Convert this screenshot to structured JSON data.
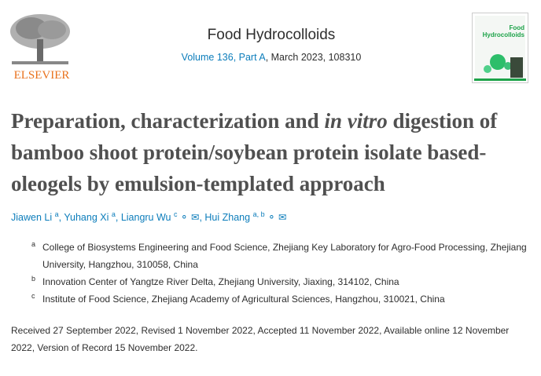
{
  "publisher": {
    "name": "ELSEVIER"
  },
  "journal": {
    "name": "Food Hydrocolloids",
    "volume_link": "Volume 136, Part A",
    "date_id": ", March 2023, 108310",
    "cover_title": "Food Hydrocolloids"
  },
  "article": {
    "title_part1": "Preparation, characterization and ",
    "title_italic": "in vitro",
    "title_part2": " digestion of bamboo shoot protein/soybean protein isolate based-oleogels by emulsion-templated approach"
  },
  "authors": [
    {
      "name": "Jiawen Li",
      "sup": "a"
    },
    {
      "name": "Yuhang Xi",
      "sup": "a"
    },
    {
      "name": "Liangru Wu",
      "sup": "c",
      "icons": [
        "person-icon",
        "envelope-icon"
      ]
    },
    {
      "name": "Hui Zhang",
      "sup": "a, b",
      "icons": [
        "person-icon",
        "envelope-icon"
      ]
    }
  ],
  "affiliations": [
    {
      "label": "a",
      "text": "College of Biosystems Engineering and Food Science, Zhejiang Key Laboratory for Agro-Food Processing, Zhejiang University, Hangzhou, 310058, China"
    },
    {
      "label": "b",
      "text": "Innovation Center of Yangtze River Delta, Zhejiang University, Jiaxing, 314102, China"
    },
    {
      "label": "c",
      "text": "Institute of Food Science, Zhejiang Academy of Agricultural Sciences, Hangzhou, 310021, China"
    }
  ],
  "dates": "Received 27 September 2022, Revised 1 November 2022, Accepted 11 November 2022, Available online 12 November 2022, Version of Record 15 November 2022.",
  "colors": {
    "link": "#0c7dbb",
    "elsevier": "#e9711c"
  }
}
